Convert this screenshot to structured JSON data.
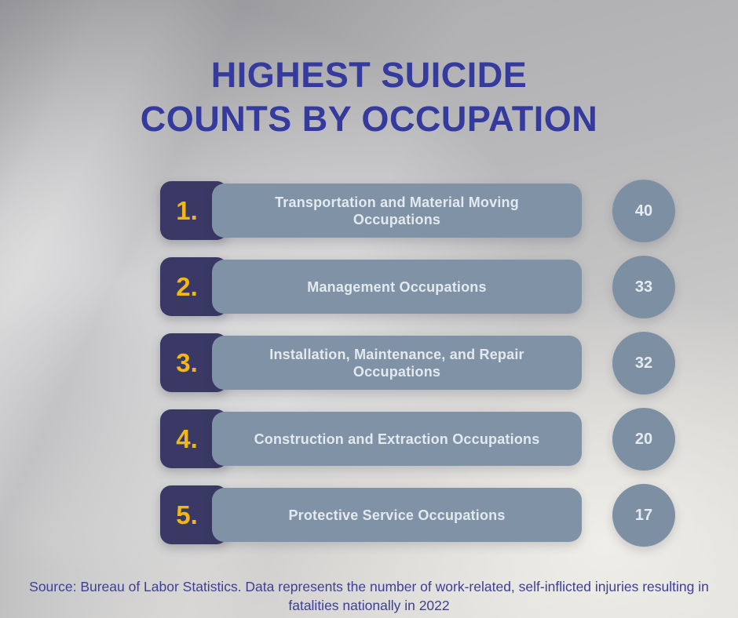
{
  "title": "HIGHEST SUICIDE\nCOUNTS BY OCCUPATION",
  "rows": [
    {
      "rank": "1.",
      "label": "Transportation and Material Moving Occupations",
      "value": "40"
    },
    {
      "rank": "2.",
      "label": "Management Occupations",
      "value": "33"
    },
    {
      "rank": "3.",
      "label": "Installation, Maintenance, and Repair Occupations",
      "value": "32"
    },
    {
      "rank": "4.",
      "label": "Construction and Extraction Occupations",
      "value": "20"
    },
    {
      "rank": "5.",
      "label": "Protective Service Occupations",
      "value": "17"
    }
  ],
  "source": "Source: Bureau of Labor Statistics. Data represents the number of work-related, self-inflicted injuries resulting in\nfatalities nationally in 2022",
  "colors": {
    "title_blue": "#353A9D",
    "rank_yellow": "#F2B716",
    "rank_block_navy": "#3A3865",
    "bar_gray_blue": "#8093A6",
    "circle_gray_blue": "#7D90A3",
    "bar_text": "#E3E9EE",
    "source_blue": "#3E3E96",
    "background_gray": "#B9B9BB"
  },
  "chart_data": {
    "type": "bar",
    "title": "HIGHEST SUICIDE COUNTS BY OCCUPATION",
    "categories": [
      "Transportation and Material Moving Occupations",
      "Management Occupations",
      "Installation, Maintenance, and Repair Occupations",
      "Construction and Extraction Occupations",
      "Protective Service Occupations"
    ],
    "values": [
      40,
      33,
      32,
      20,
      17
    ],
    "ranks": [
      "1.",
      "2.",
      "3.",
      "4.",
      "5."
    ],
    "xlabel": "",
    "ylabel": "",
    "legend": false,
    "orientation": "ranked-horizontal-list",
    "source_note": "Source: Bureau of Labor Statistics. Data represents the number of work-related, self-inflicted injuries resulting in fatalities nationally in 2022"
  }
}
